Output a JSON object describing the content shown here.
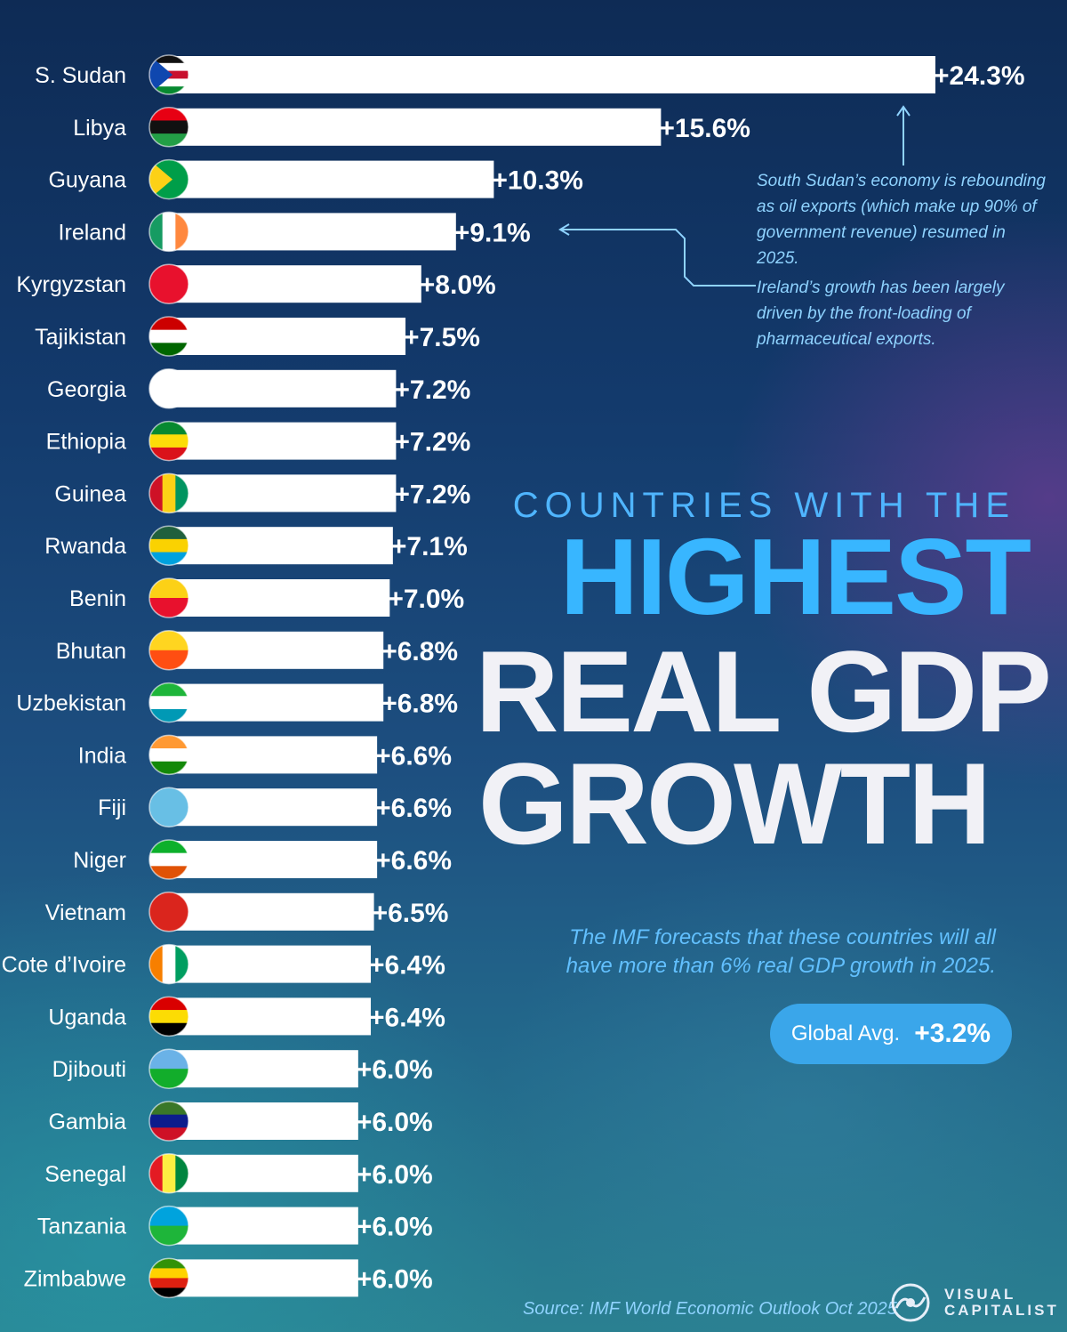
{
  "chart_data": {
    "type": "bar",
    "orientation": "horizontal",
    "title": "COUNTRIES WITH THE HIGHEST REAL GDP GROWTH",
    "title_parts": [
      "COUNTRIES WITH THE",
      "HIGHEST",
      "REAL GDP",
      "GROWTH"
    ],
    "subtitle": "The IMF forecasts that these countries will all have more than 6% real GDP growth in 2025.",
    "unit": "%",
    "xlim": [
      0,
      24.3
    ],
    "categories": [
      "S. Sudan",
      "Libya",
      "Guyana",
      "Ireland",
      "Kyrgyzstan",
      "Tajikistan",
      "Georgia",
      "Ethiopia",
      "Guinea",
      "Rwanda",
      "Benin",
      "Bhutan",
      "Uzbekistan",
      "India",
      "Fiji",
      "Niger",
      "Vietnam",
      "Cote d’Ivoire",
      "Uganda",
      "Djibouti",
      "Gambia",
      "Senegal",
      "Tanzania",
      "Zimbabwe"
    ],
    "values": [
      24.3,
      15.6,
      10.3,
      9.1,
      8.0,
      7.5,
      7.2,
      7.2,
      7.2,
      7.1,
      7.0,
      6.8,
      6.8,
      6.6,
      6.6,
      6.6,
      6.5,
      6.4,
      6.4,
      6.0,
      6.0,
      6.0,
      6.0,
      6.0
    ],
    "value_labels": [
      "+24.3%",
      "+15.6%",
      "+10.3%",
      "+9.1%",
      "+8.0%",
      "+7.5%",
      "+7.2%",
      "+7.2%",
      "+7.2%",
      "+7.1%",
      "+7.0%",
      "+6.8%",
      "+6.8%",
      "+6.6%",
      "+6.6%",
      "+6.6%",
      "+6.5%",
      "+6.4%",
      "+6.4%",
      "+6.0%",
      "+6.0%",
      "+6.0%",
      "+6.0%",
      "+6.0%"
    ],
    "annotations": [
      {
        "target": "S. Sudan",
        "text": "South Sudan’s economy is rebounding as oil exports (which make up 90% of government revenue) resumed in 2025."
      },
      {
        "target": "Ireland",
        "text": "Ireland’s growth has been largely driven by the front-loading of pharmaceutical exports."
      }
    ],
    "reference": {
      "label": "Global Avg.",
      "value": 3.2,
      "value_label": "+3.2%"
    }
  },
  "flags": [
    {
      "country": "S. Sudan",
      "colors": [
        "#111111",
        "#ffffff",
        "#c8102e",
        "#ffffff",
        "#078930"
      ],
      "triangle": "#0f47af"
    },
    {
      "country": "Libya",
      "colors": [
        "#e70013",
        "#111111",
        "#239e46"
      ]
    },
    {
      "country": "Guyana",
      "colors": [
        "#009e49"
      ],
      "triangle": "#fcd116"
    },
    {
      "country": "Ireland",
      "colors": [
        "#169b62",
        "#ffffff",
        "#ff883e"
      ],
      "vertical": true
    },
    {
      "country": "Kyrgyzstan",
      "colors": [
        "#e8112d"
      ]
    },
    {
      "country": "Tajikistan",
      "colors": [
        "#cc0000",
        "#ffffff",
        "#006600"
      ]
    },
    {
      "country": "Georgia",
      "colors": [
        "#ffffff"
      ]
    },
    {
      "country": "Ethiopia",
      "colors": [
        "#078930",
        "#fcdd09",
        "#da121a"
      ]
    },
    {
      "country": "Guinea",
      "colors": [
        "#ce1126",
        "#fcd116",
        "#009460"
      ],
      "vertical": true
    },
    {
      "country": "Rwanda",
      "colors": [
        "#20603d",
        "#fad201",
        "#00a1de"
      ]
    },
    {
      "country": "Benin",
      "colors": [
        "#fcd116",
        "#e8112d"
      ]
    },
    {
      "country": "Bhutan",
      "colors": [
        "#ffd520",
        "#ff4e12"
      ]
    },
    {
      "country": "Uzbekistan",
      "colors": [
        "#1eb53a",
        "#ffffff",
        "#0099b5"
      ]
    },
    {
      "country": "India",
      "colors": [
        "#ff9933",
        "#ffffff",
        "#138808"
      ]
    },
    {
      "country": "Fiji",
      "colors": [
        "#68bfe5"
      ]
    },
    {
      "country": "Niger",
      "colors": [
        "#0db02b",
        "#ffffff",
        "#e05206"
      ]
    },
    {
      "country": "Vietnam",
      "colors": [
        "#da251d"
      ]
    },
    {
      "country": "Cote d’Ivoire",
      "colors": [
        "#f77f00",
        "#ffffff",
        "#009e60"
      ],
      "vertical": true
    },
    {
      "country": "Uganda",
      "colors": [
        "#d90000",
        "#fcdc04",
        "#000000"
      ]
    },
    {
      "country": "Djibouti",
      "colors": [
        "#6ab2e7",
        "#12ad2b"
      ]
    },
    {
      "country": "Gambia",
      "colors": [
        "#3a7728",
        "#0c1c8c",
        "#ce1126"
      ]
    },
    {
      "country": "Senegal",
      "colors": [
        "#e31b23",
        "#fdef42",
        "#00853f"
      ],
      "vertical": true
    },
    {
      "country": "Tanzania",
      "colors": [
        "#00a3dd",
        "#1eb53a"
      ]
    },
    {
      "country": "Zimbabwe",
      "colors": [
        "#319208",
        "#ffd200",
        "#de2010",
        "#000000"
      ]
    }
  ],
  "source": "Source: IMF World Economic Outlook Oct 2025",
  "brand": {
    "line1": "VISUAL",
    "line2": "CAPITALIST"
  },
  "colors": {
    "accent": "#38b6ff",
    "note": "#8fd3ff",
    "bar": "#ffffff",
    "pill": "#3aa6ea"
  }
}
